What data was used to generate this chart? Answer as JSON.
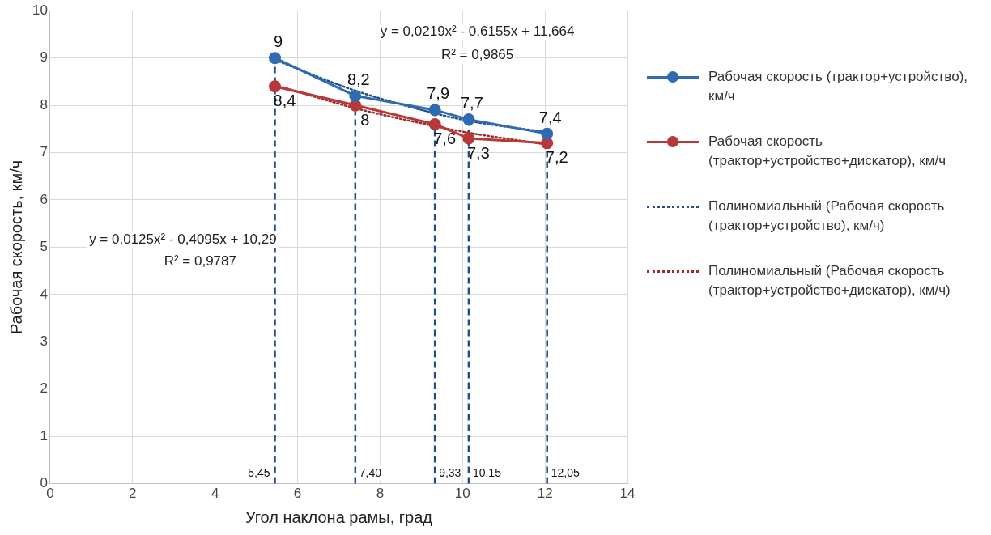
{
  "chart_data": {
    "type": "line",
    "xlabel": "Угол наклона рамы, град",
    "ylabel": "Рабочая скорость, км/ч",
    "xlim": [
      0,
      14
    ],
    "xticks": [
      0,
      2,
      4,
      6,
      8,
      10,
      12,
      14
    ],
    "ylim": [
      0,
      10
    ],
    "yticks": [
      0,
      1,
      2,
      3,
      4,
      5,
      6,
      7,
      8,
      9,
      10
    ],
    "grid": true,
    "legend": "right",
    "marker": "circle",
    "x": [
      5.45,
      7.4,
      9.33,
      10.15,
      12.05
    ],
    "series": [
      {
        "name": "Рабочая скорость (трактор+устройство), км/ч",
        "color": "#2f6bb3",
        "values": [
          9,
          8.2,
          7.9,
          7.7,
          7.4
        ],
        "value_labels": [
          "9",
          "8,2",
          "7,9",
          "7,7",
          "7,4"
        ]
      },
      {
        "name": "Рабочая скорость (трактор+устройство+дискатор), км/ч",
        "color": "#b8383a",
        "values": [
          8.4,
          8,
          7.6,
          7.3,
          7.2
        ],
        "value_labels": [
          "8,4",
          "8",
          "7,6",
          "7,3",
          "7,2"
        ]
      },
      {
        "name": "Полиномиальный (Рабочая скорость (трактор+устройство), км/ч)",
        "type": "line",
        "line_style": "dotted",
        "marker": "none",
        "color": "#1f4e8c",
        "values": [
          8.96,
          8.31,
          7.83,
          7.67,
          7.43
        ]
      },
      {
        "name": "Полиномиальный (Рабочая скорость (трактор+устройство+дискатор), км/ч)",
        "type": "line",
        "line_style": "dotted",
        "marker": "none",
        "color": "#9e2a2a",
        "values": [
          8.43,
          7.94,
          7.56,
          7.42,
          7.17
        ]
      }
    ],
    "ref_lines": [
      {
        "axis": "x",
        "value": 5.45,
        "label": "5,45",
        "color": "#1f4e8c",
        "line_style": "dashed"
      },
      {
        "axis": "x",
        "value": 7.4,
        "label": "7,40",
        "color": "#1f4e8c",
        "line_style": "dashed"
      },
      {
        "axis": "x",
        "value": 9.33,
        "label": "9,33",
        "color": "#1f4e8c",
        "line_style": "dashed"
      },
      {
        "axis": "x",
        "value": 10.15,
        "label": "10,15",
        "color": "#1f4e8c",
        "line_style": "dashed"
      },
      {
        "axis": "x",
        "value": 12.05,
        "label": "12,05",
        "color": "#1f4e8c",
        "line_style": "dashed"
      }
    ],
    "annotations": [
      "y = 0,0219x² - 0,6155x + 11,664",
      "R² = 0,9865",
      "y = 0,0125x² - 0,4095x + 10,29",
      "R² = 0,9787"
    ]
  }
}
